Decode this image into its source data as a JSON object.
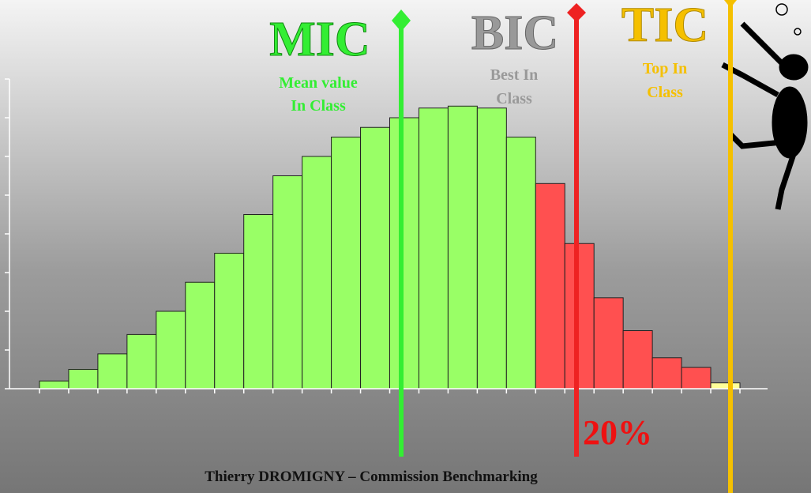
{
  "chart_data": {
    "type": "bar",
    "footer": "Thierry DROMIGNY – Commission Benchmarking",
    "annotations": {
      "mic": {
        "label": "MIC",
        "lines": [
          "Mean value",
          "In Class"
        ],
        "color": "#33ee33"
      },
      "bic": {
        "label": "BIC",
        "lines": [
          "Best In",
          "Class"
        ],
        "color": "#999999"
      },
      "tic": {
        "label": "TIC",
        "lines": [
          "Top In",
          "Class"
        ],
        "color": "#f5c000"
      },
      "share": "20%"
    },
    "categories": [
      null,
      null,
      null,
      null,
      null,
      null,
      null,
      null,
      null,
      null,
      null,
      null,
      null,
      null,
      null,
      null,
      null,
      null,
      null,
      null,
      null,
      null,
      null,
      null
    ],
    "values": [
      0.2,
      0.5,
      0.9,
      1.4,
      2.0,
      2.75,
      3.5,
      4.5,
      5.5,
      6.0,
      6.5,
      6.75,
      7.0,
      7.25,
      7.3,
      7.25,
      6.5,
      5.3,
      3.75,
      2.35,
      1.5,
      0.8,
      0.55,
      0.15
    ],
    "colors": [
      "#99ff66",
      "#99ff66",
      "#99ff66",
      "#99ff66",
      "#99ff66",
      "#99ff66",
      "#99ff66",
      "#99ff66",
      "#99ff66",
      "#99ff66",
      "#99ff66",
      "#99ff66",
      "#99ff66",
      "#99ff66",
      "#99ff66",
      "#99ff66",
      "#99ff66",
      "#ff5050",
      "#ff5050",
      "#ff5050",
      "#ff5050",
      "#ff5050",
      "#ff5050",
      "#ffff99"
    ],
    "ylim": [
      0,
      8
    ],
    "yticks": [
      0,
      1,
      2,
      3,
      4,
      5,
      6,
      7,
      8
    ]
  }
}
